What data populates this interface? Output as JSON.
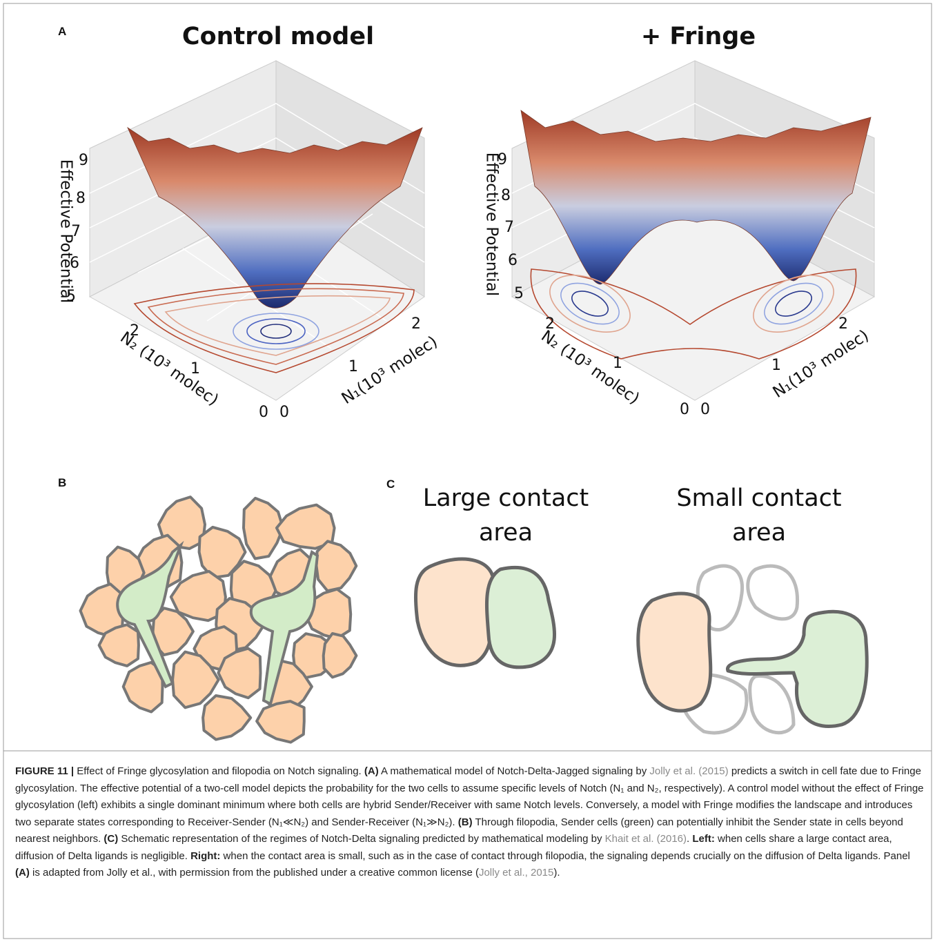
{
  "panel_a": {
    "label": "A",
    "plots": [
      {
        "title": "Control model",
        "z_label": "Effective Potential",
        "z_ticks": [
          5,
          6,
          7,
          8,
          9
        ],
        "n2_label": "N₂ (10³ molec)",
        "n2_ticks": [
          0,
          1,
          2
        ],
        "n1_label": "N₁(10³ molec)",
        "n1_ticks": [
          0,
          1,
          2
        ]
      },
      {
        "title": "+ Fringe",
        "z_label": "Effective Potential",
        "z_ticks": [
          5,
          6,
          7,
          8,
          9
        ],
        "n2_label": "N₂ (10³ molec)",
        "n2_ticks": [
          0,
          1,
          2
        ],
        "n1_label": "N₁(10³ molec)",
        "n1_ticks": [
          0,
          1,
          2
        ]
      }
    ]
  },
  "panel_b": {
    "label": "B"
  },
  "panel_c": {
    "label": "C",
    "left_title": "Large contact area",
    "right_title": "Small contact area"
  },
  "caption": {
    "runs": [
      {
        "text": "FIGURE 11 | ",
        "style": "bold"
      },
      {
        "text": "Effect of Fringe glycosylation and filopodia on Notch signaling. ",
        "style": "normal"
      },
      {
        "text": "(A)",
        "style": "bold"
      },
      {
        "text": " A mathematical model of Notch-Delta-Jagged signaling by ",
        "style": "normal"
      },
      {
        "text": "Jolly et al. (2015)",
        "style": "link"
      },
      {
        "text": " predicts a switch in cell fate due to Fringe glycosylation. The effective potential of a two-cell model depicts the probability for the two cells to assume specific levels of Notch (N₁ and N₂, respectively). A control model without the effect of Fringe glycosylation (left) exhibits a single dominant minimum where both cells are hybrid Sender/Receiver with same Notch levels. Conversely, a model with Fringe modifies the landscape and introduces two separate states corresponding to Receiver-Sender (N₁≪N₂) and Sender-Receiver (N₁≫N₂). ",
        "style": "normal"
      },
      {
        "text": "(B)",
        "style": "bold"
      },
      {
        "text": " Through filopodia, Sender cells (green) can potentially inhibit the Sender state in cells beyond nearest neighbors. ",
        "style": "normal"
      },
      {
        "text": "(C)",
        "style": "bold"
      },
      {
        "text": " Schematic representation of the regimes of Notch-Delta signaling predicted by mathematical modeling by ",
        "style": "normal"
      },
      {
        "text": "Khait et al. (2016)",
        "style": "link"
      },
      {
        "text": ". ",
        "style": "normal"
      },
      {
        "text": "Left:",
        "style": "bold"
      },
      {
        "text": " when cells share a large contact area, diffusion of Delta ligands is negligible. ",
        "style": "normal"
      },
      {
        "text": "Right:",
        "style": "bold"
      },
      {
        "text": " when the contact area is small, such as in the case of contact through filopodia, the signaling depends crucially on the diffusion of Delta ligands. Panel ",
        "style": "normal"
      },
      {
        "text": "(A)",
        "style": "bold"
      },
      {
        "text": " is adapted from Jolly et al., with permission from the published under a creative common license (",
        "style": "normal"
      },
      {
        "text": "Jolly et al., 2015",
        "style": "link"
      },
      {
        "text": ").",
        "style": "normal"
      }
    ]
  }
}
